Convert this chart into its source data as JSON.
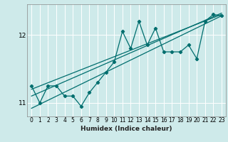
{
  "title": "",
  "xlabel": "Humidex (Indice chaleur)",
  "ylabel": "",
  "background_color": "#ceeaea",
  "grid_color": "#ffffff",
  "line_color": "#006e6e",
  "x_data": [
    0,
    1,
    2,
    3,
    4,
    5,
    6,
    7,
    8,
    9,
    10,
    11,
    12,
    13,
    14,
    15,
    16,
    17,
    18,
    19,
    20,
    21,
    22,
    23
  ],
  "y_main": [
    11.25,
    11.0,
    11.25,
    11.25,
    11.1,
    11.1,
    10.95,
    11.15,
    11.3,
    11.45,
    11.6,
    12.05,
    11.8,
    12.2,
    11.85,
    12.1,
    11.75,
    11.75,
    11.75,
    11.85,
    11.65,
    12.2,
    12.3,
    12.28
  ],
  "trend1_start": 11.1,
  "trend1_end": 12.32,
  "trend2_start": 10.92,
  "trend2_end": 12.28,
  "trend3_start": 11.2,
  "trend3_end": 12.3,
  "ylim": [
    10.8,
    12.45
  ],
  "yticks": [
    11,
    12
  ],
  "xlim": [
    -0.5,
    23.5
  ],
  "xticks": [
    0,
    1,
    2,
    3,
    4,
    5,
    6,
    7,
    8,
    9,
    10,
    11,
    12,
    13,
    14,
    15,
    16,
    17,
    18,
    19,
    20,
    21,
    22,
    23
  ]
}
